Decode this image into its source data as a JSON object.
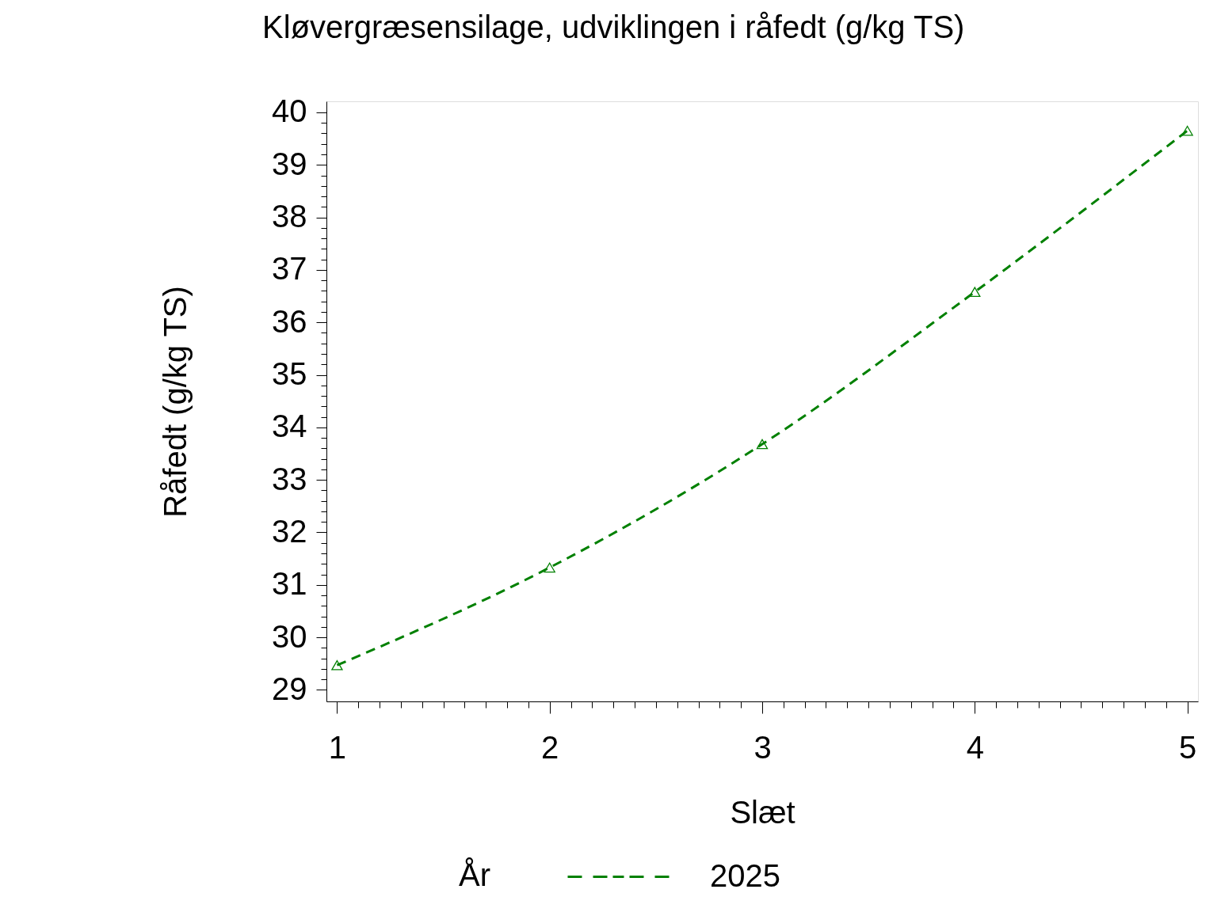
{
  "chart_data": {
    "type": "line",
    "title": "Kløvergræsensilage, udviklingen i råfedt (g/kg TS)",
    "xlabel": "Slæt",
    "ylabel": "Råfedt (g/kg TS)",
    "legend_title": "År",
    "x": [
      1,
      2,
      3,
      4,
      5
    ],
    "series": [
      {
        "name": "2025",
        "color": "#008000",
        "values": [
          29.47,
          31.33,
          33.68,
          36.58,
          39.65
        ]
      }
    ],
    "xlim": [
      0.95,
      5.05
    ],
    "ylim": [
      28.78,
      40.21
    ],
    "xticks": [
      1,
      {
        "value": 1.1,
        "label": null
      },
      {
        "value": 1.2,
        "label": null
      },
      {
        "value": 1.3,
        "label": null
      },
      {
        "value": 1.4,
        "label": null
      },
      {
        "value": 1.5,
        "label": null
      },
      {
        "value": 1.6,
        "label": null
      },
      {
        "value": 1.7,
        "label": null
      },
      {
        "value": 1.8,
        "label": null
      },
      {
        "value": 1.9,
        "label": null
      },
      2,
      {
        "value": 2.1,
        "label": null
      },
      {
        "value": 2.2,
        "label": null
      },
      {
        "value": 2.3,
        "label": null
      },
      {
        "value": 2.4,
        "label": null
      },
      {
        "value": 2.5,
        "label": null
      },
      {
        "value": 2.6,
        "label": null
      },
      {
        "value": 2.7,
        "label": null
      },
      {
        "value": 2.8,
        "label": null
      },
      {
        "value": 2.9,
        "label": null
      },
      3,
      {
        "value": 3.1,
        "label": null
      },
      {
        "value": 3.2,
        "label": null
      },
      {
        "value": 3.3,
        "label": null
      },
      {
        "value": 3.4,
        "label": null
      },
      {
        "value": 3.5,
        "label": null
      },
      {
        "value": 3.6,
        "label": null
      },
      {
        "value": 3.7,
        "label": null
      },
      {
        "value": 3.8,
        "label": null
      },
      {
        "value": 3.9,
        "label": null
      },
      4,
      {
        "value": 4.1,
        "label": null
      },
      {
        "value": 4.2,
        "label": null
      },
      {
        "value": 4.3,
        "label": null
      },
      {
        "value": 4.4,
        "label": null
      },
      {
        "value": 4.5,
        "label": null
      },
      {
        "value": 4.6,
        "label": null
      },
      {
        "value": 4.7,
        "label": null
      },
      {
        "value": 4.8,
        "label": null
      },
      {
        "value": 4.9,
        "label": null
      },
      5
    ],
    "yticks": [
      29,
      {
        "value": 29.2,
        "label": null
      },
      {
        "value": 29.4,
        "label": null
      },
      {
        "value": 29.6,
        "label": null
      },
      {
        "value": 29.8,
        "label": null
      },
      30,
      {
        "value": 30.2,
        "label": null
      },
      {
        "value": 30.4,
        "label": null
      },
      {
        "value": 30.6,
        "label": null
      },
      {
        "value": 30.8,
        "label": null
      },
      31,
      {
        "value": 31.2,
        "label": null
      },
      {
        "value": 31.4,
        "label": null
      },
      {
        "value": 31.6,
        "label": null
      },
      {
        "value": 31.8,
        "label": null
      },
      32,
      {
        "value": 32.2,
        "label": null
      },
      {
        "value": 32.4,
        "label": null
      },
      {
        "value": 32.6,
        "label": null
      },
      {
        "value": 32.8,
        "label": null
      },
      33,
      {
        "value": 33.2,
        "label": null
      },
      {
        "value": 33.4,
        "label": null
      },
      {
        "value": 33.6,
        "label": null
      },
      {
        "value": 33.8,
        "label": null
      },
      34,
      {
        "value": 34.2,
        "label": null
      },
      {
        "value": 34.4,
        "label": null
      },
      {
        "value": 34.6,
        "label": null
      },
      {
        "value": 34.8,
        "label": null
      },
      35,
      {
        "value": 35.2,
        "label": null
      },
      {
        "value": 35.4,
        "label": null
      },
      {
        "value": 35.6,
        "label": null
      },
      {
        "value": 35.8,
        "label": null
      },
      36,
      {
        "value": 36.2,
        "label": null
      },
      {
        "value": 36.4,
        "label": null
      },
      {
        "value": 36.6,
        "label": null
      },
      {
        "value": 36.8,
        "label": null
      },
      37,
      {
        "value": 37.2,
        "label": null
      },
      {
        "value": 37.4,
        "label": null
      },
      {
        "value": 37.6,
        "label": null
      },
      {
        "value": 37.8,
        "label": null
      },
      38,
      {
        "value": 38.2,
        "label": null
      },
      {
        "value": 38.4,
        "label": null
      },
      {
        "value": 38.6,
        "label": null
      },
      {
        "value": 38.8,
        "label": null
      },
      39,
      {
        "value": 39.2,
        "label": null
      },
      {
        "value": 39.4,
        "label": null
      },
      {
        "value": 39.6,
        "label": null
      },
      {
        "value": 39.8,
        "label": null
      },
      40
    ],
    "legend": "bottom",
    "marker": "triangle",
    "line_style": "dashed",
    "grid": false
  }
}
